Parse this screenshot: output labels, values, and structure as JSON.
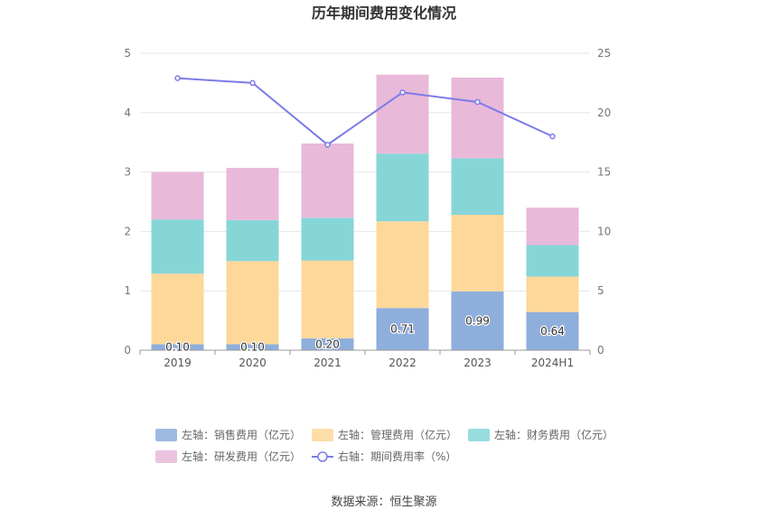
{
  "chart_data": {
    "type": "bar",
    "title": "历年期间费用变化情况",
    "categories": [
      "2019",
      "2020",
      "2021",
      "2022",
      "2023",
      "2024H1"
    ],
    "y_left": {
      "range": [
        0,
        5
      ],
      "ticks": [
        "0",
        "1",
        "2",
        "3",
        "4",
        "5"
      ]
    },
    "y_right": {
      "range": [
        0,
        25
      ],
      "ticks": [
        "0",
        "5",
        "10",
        "15",
        "20",
        "25"
      ]
    },
    "stacked": true,
    "series": [
      {
        "name": "左轴：销售费用（亿元）",
        "axis": "left",
        "color": "#8eaedc",
        "values": [
          0.1,
          0.1,
          0.2,
          0.71,
          0.99,
          0.64
        ],
        "labels": [
          "0.10",
          "0.10",
          "0.20",
          "0.71",
          "0.99",
          "0.64"
        ]
      },
      {
        "name": "左轴：管理费用（亿元）",
        "axis": "left",
        "color": "#fdd89a",
        "values": [
          1.19,
          1.4,
          1.31,
          1.46,
          1.29,
          0.6
        ]
      },
      {
        "name": "左轴：财务费用（亿元）",
        "axis": "left",
        "color": "#86d6d8",
        "values": [
          0.91,
          0.69,
          0.72,
          1.14,
          0.95,
          0.53
        ]
      },
      {
        "name": "左轴：研发费用（亿元）",
        "axis": "left",
        "color": "#e8b9d9",
        "values": [
          0.8,
          0.88,
          1.25,
          1.33,
          1.36,
          0.63
        ]
      }
    ],
    "line_series": {
      "name": "右轴：期间费用率（%）",
      "axis": "right",
      "color": "#7b7be8",
      "values": [
        22.9,
        22.5,
        17.3,
        21.7,
        20.9,
        18.0
      ]
    },
    "legend_position": "bottom",
    "grid": true
  },
  "source": "数据来源：恒生聚源"
}
